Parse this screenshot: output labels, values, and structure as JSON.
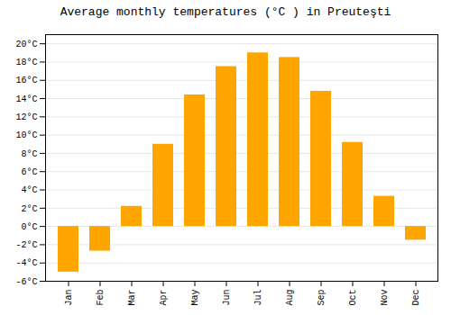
{
  "chart_data": {
    "type": "bar",
    "title": "Average monthly temperatures (°C ) in Preuteşti",
    "categories": [
      "Jan",
      "Feb",
      "Mar",
      "Apr",
      "May",
      "Jun",
      "Jul",
      "Aug",
      "Sep",
      "Oct",
      "Nov",
      "Dec"
    ],
    "values": [
      -5.0,
      -2.7,
      2.2,
      9.0,
      14.4,
      17.5,
      19.0,
      18.5,
      14.8,
      9.2,
      3.3,
      -1.5
    ],
    "color": "#FFA500",
    "ylim": [
      -6,
      21
    ],
    "yticks": [
      {
        "value": -6,
        "label": "-6°C"
      },
      {
        "value": -4,
        "label": "-4°C"
      },
      {
        "value": -2,
        "label": "-2°C"
      },
      {
        "value": 0,
        "label": "0°C"
      },
      {
        "value": 2,
        "label": "2°C"
      },
      {
        "value": 4,
        "label": "4°C"
      },
      {
        "value": 6,
        "label": "6°C"
      },
      {
        "value": 8,
        "label": "8°C"
      },
      {
        "value": 10,
        "label": "10°C"
      },
      {
        "value": 12,
        "label": "12°C"
      },
      {
        "value": 14,
        "label": "14°C"
      },
      {
        "value": 16,
        "label": "16°C"
      },
      {
        "value": 18,
        "label": "18°C"
      },
      {
        "value": 20,
        "label": "20°C"
      }
    ],
    "grid": true
  }
}
